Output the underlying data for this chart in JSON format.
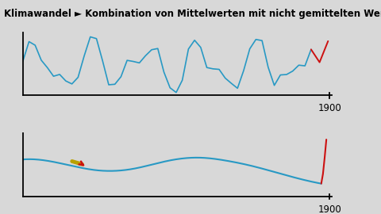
{
  "title": "Klimawandel ► Kombination von Mittelwerten mit nicht gemittelten Werten",
  "title_fontsize": 8.5,
  "title_bg": "#c0c0c0",
  "bg_color": "#d8d8d8",
  "axes_bg": "#ffffff",
  "top_line_color": "#2899c4",
  "bottom_line_color": "#2899c4",
  "red_color": "#cc1111",
  "tick_label": "1900",
  "tick_label_fontsize": 8.5,
  "cursor_yellow": "#b8a000",
  "cursor_red": "#cc1111"
}
